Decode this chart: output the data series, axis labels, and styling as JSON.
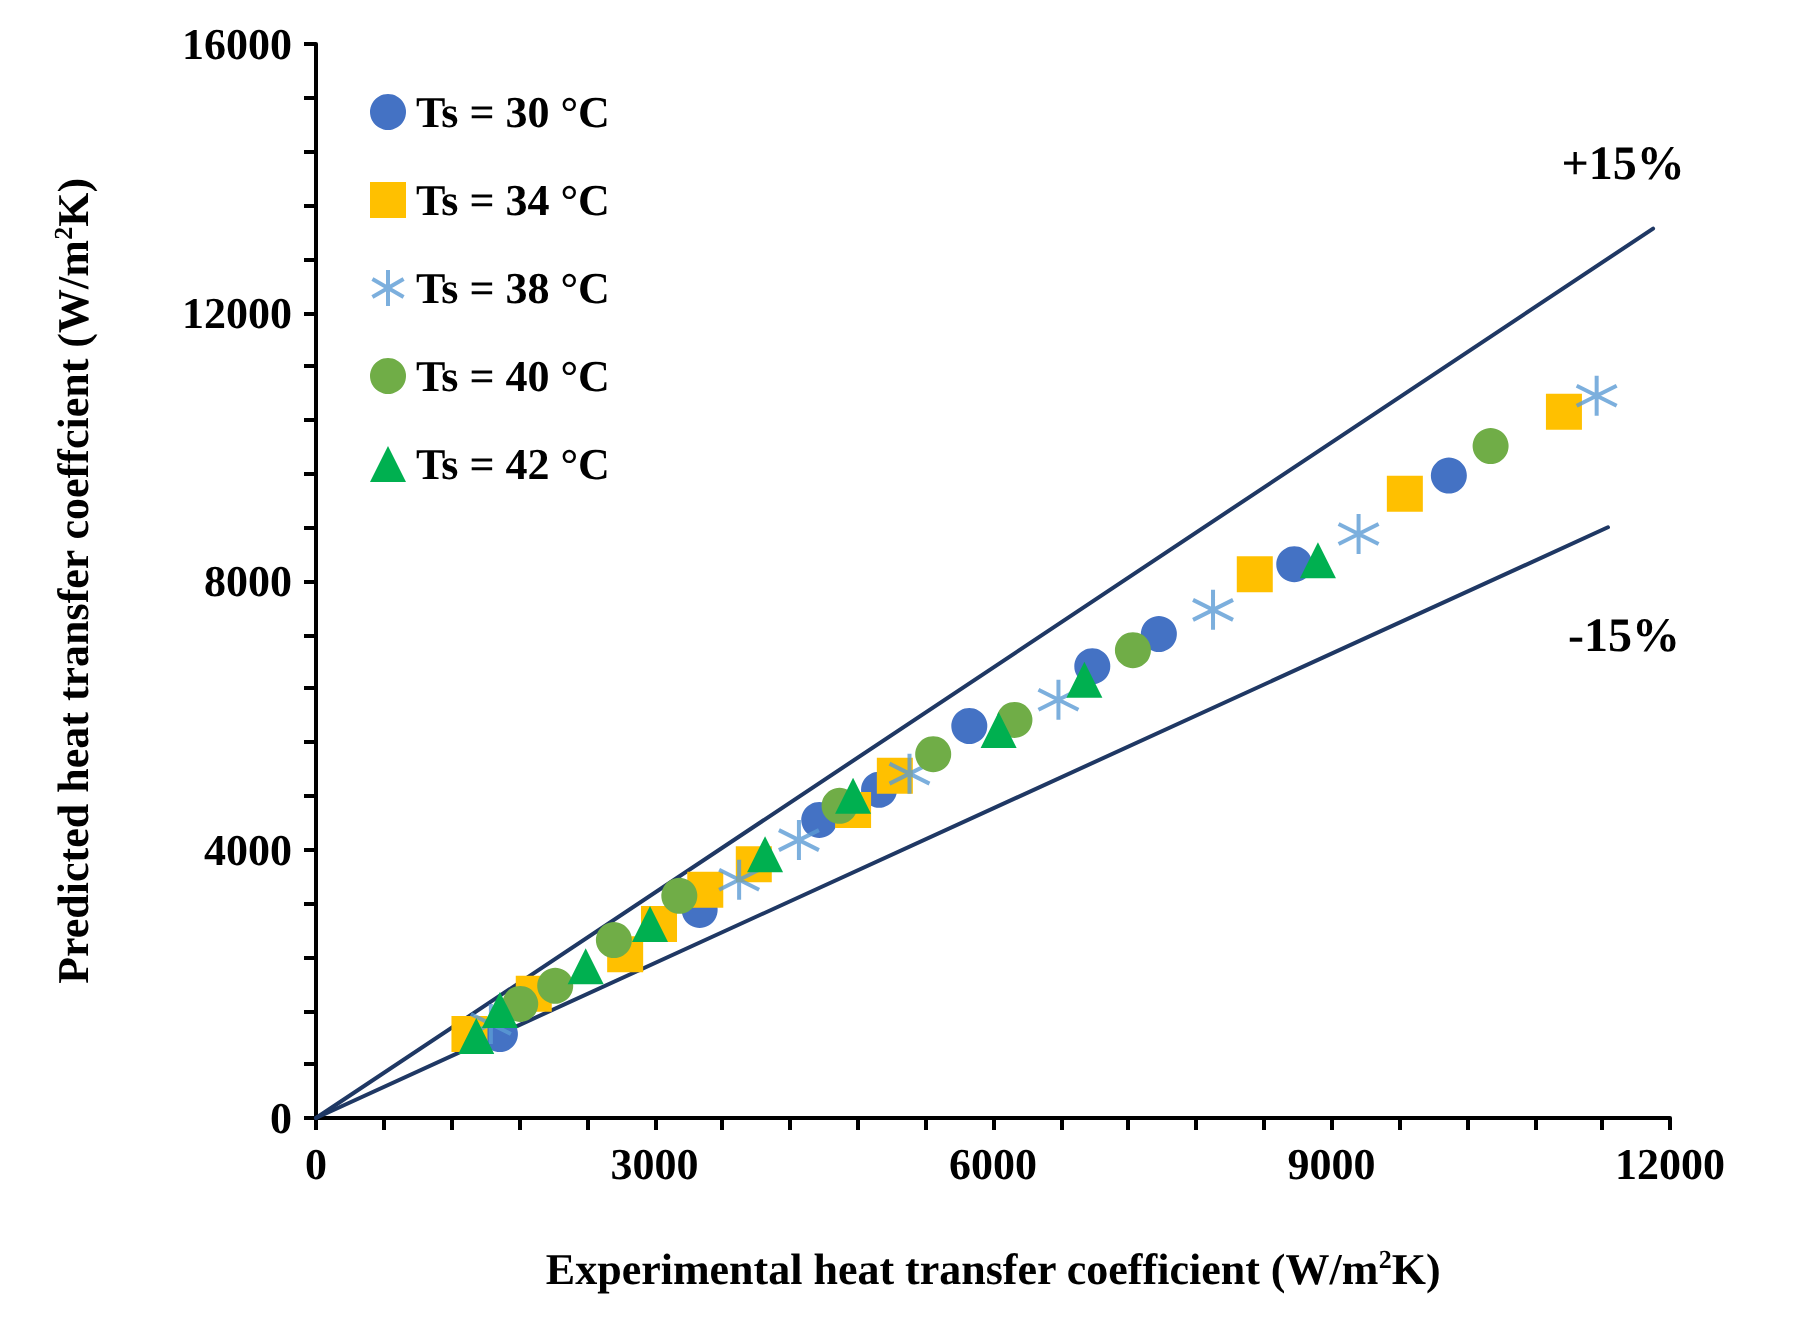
{
  "chart_data": {
    "type": "scatter",
    "xlabel": "Experimental heat transfer coefficient (W/m$^{2}$K)",
    "ylabel": "Predicted heat transfer coeffcient (W/m$^{2}$K)",
    "xlim": [
      0,
      12000
    ],
    "xticks": [
      0,
      {
        "value": 600,
        "label": null
      },
      {
        "value": 1200,
        "label": null
      },
      {
        "value": 1800,
        "label": null
      },
      {
        "value": 2400,
        "label": null
      },
      3000,
      {
        "value": 3600,
        "label": null
      },
      {
        "value": 4200,
        "label": null
      },
      {
        "value": 4800,
        "label": null
      },
      {
        "value": 5400,
        "label": null
      },
      6000,
      {
        "value": 6600,
        "label": null
      },
      {
        "value": 7200,
        "label": null
      },
      {
        "value": 7800,
        "label": null
      },
      {
        "value": 8400,
        "label": null
      },
      9000,
      {
        "value": 9600,
        "label": null
      },
      {
        "value": 10200,
        "label": null
      },
      {
        "value": 10800,
        "label": null
      },
      {
        "value": 11400,
        "label": null
      },
      12000
    ],
    "ylim": [
      0,
      16000
    ],
    "yticks": [
      0,
      {
        "value": 800,
        "label": null
      },
      {
        "value": 1600,
        "label": null
      },
      {
        "value": 2400,
        "label": null
      },
      {
        "value": 3200,
        "label": null
      },
      4000,
      {
        "value": 4800,
        "label": null
      },
      {
        "value": 5600,
        "label": null
      },
      {
        "value": 6400,
        "label": null
      },
      {
        "value": 7200,
        "label": null
      },
      8000,
      {
        "value": 8800,
        "label": null
      },
      {
        "value": 9600,
        "label": null
      },
      {
        "value": 10400,
        "label": null
      },
      {
        "value": 11200,
        "label": null
      },
      12000,
      {
        "value": 12800,
        "label": null
      },
      {
        "value": 13600,
        "label": null
      },
      {
        "value": 14400,
        "label": null
      },
      {
        "value": 15200,
        "label": null
      },
      16000
    ],
    "grid": false,
    "legend": "top left",
    "series": [
      {
        "name": "Ts = 30 °C",
        "marker": "circle",
        "color": "#4472c4",
        "x": [
          1630,
          3400,
          4460,
          4990,
          5790,
          6880,
          7470,
          8670,
          10040
        ],
        "values": [
          1250,
          3100,
          4440,
          4890,
          5840,
          6730,
          7210,
          8250,
          9570
        ]
      },
      {
        "name": "Ts = 34 °C",
        "marker": "square",
        "color": "#ffc000",
        "x": [
          1360,
          1930,
          2740,
          3040,
          3450,
          3880,
          4760,
          5130,
          8320,
          9650,
          11060
        ],
        "values": [
          1250,
          1850,
          2440,
          2890,
          3400,
          3780,
          4590,
          5100,
          8100,
          9300,
          10520
        ]
      },
      {
        "name": "Ts = 38 °C",
        "marker": "cross",
        "color": "#5b9bd5",
        "x": [
          1550,
          3750,
          4280,
          5260,
          6580,
          7950,
          9240,
          11350
        ],
        "values": [
          1400,
          3550,
          4140,
          5130,
          6230,
          7570,
          8700,
          10760
        ]
      },
      {
        "name": "Ts = 40 °C",
        "marker": "circle",
        "color": "#70ad47",
        "x": [
          1810,
          2120,
          2640,
          3220,
          4640,
          5470,
          6190,
          7240,
          10410
        ],
        "values": [
          1700,
          1970,
          2650,
          3310,
          4650,
          5420,
          5930,
          6970,
          10010
        ]
      },
      {
        "name": "Ts = 42 °C",
        "marker": "triangle",
        "color": "#00b050",
        "x": [
          1420,
          1630,
          2390,
          2960,
          3980,
          4760,
          6050,
          6810,
          8880
        ],
        "values": [
          1220,
          1610,
          2260,
          2890,
          3930,
          4800,
          5780,
          6530,
          8310
        ]
      },
      {
        "type": "line",
        "marker": "none",
        "color": "#1f3864",
        "x": [
          0,
          11850
        ],
        "values": [
          0,
          13250
        ]
      },
      {
        "type": "line",
        "marker": "none",
        "color": "#1f3864",
        "x": [
          0,
          11450
        ],
        "values": [
          0,
          8800
        ]
      }
    ],
    "annotations": [
      "+15%",
      "-15%"
    ]
  }
}
